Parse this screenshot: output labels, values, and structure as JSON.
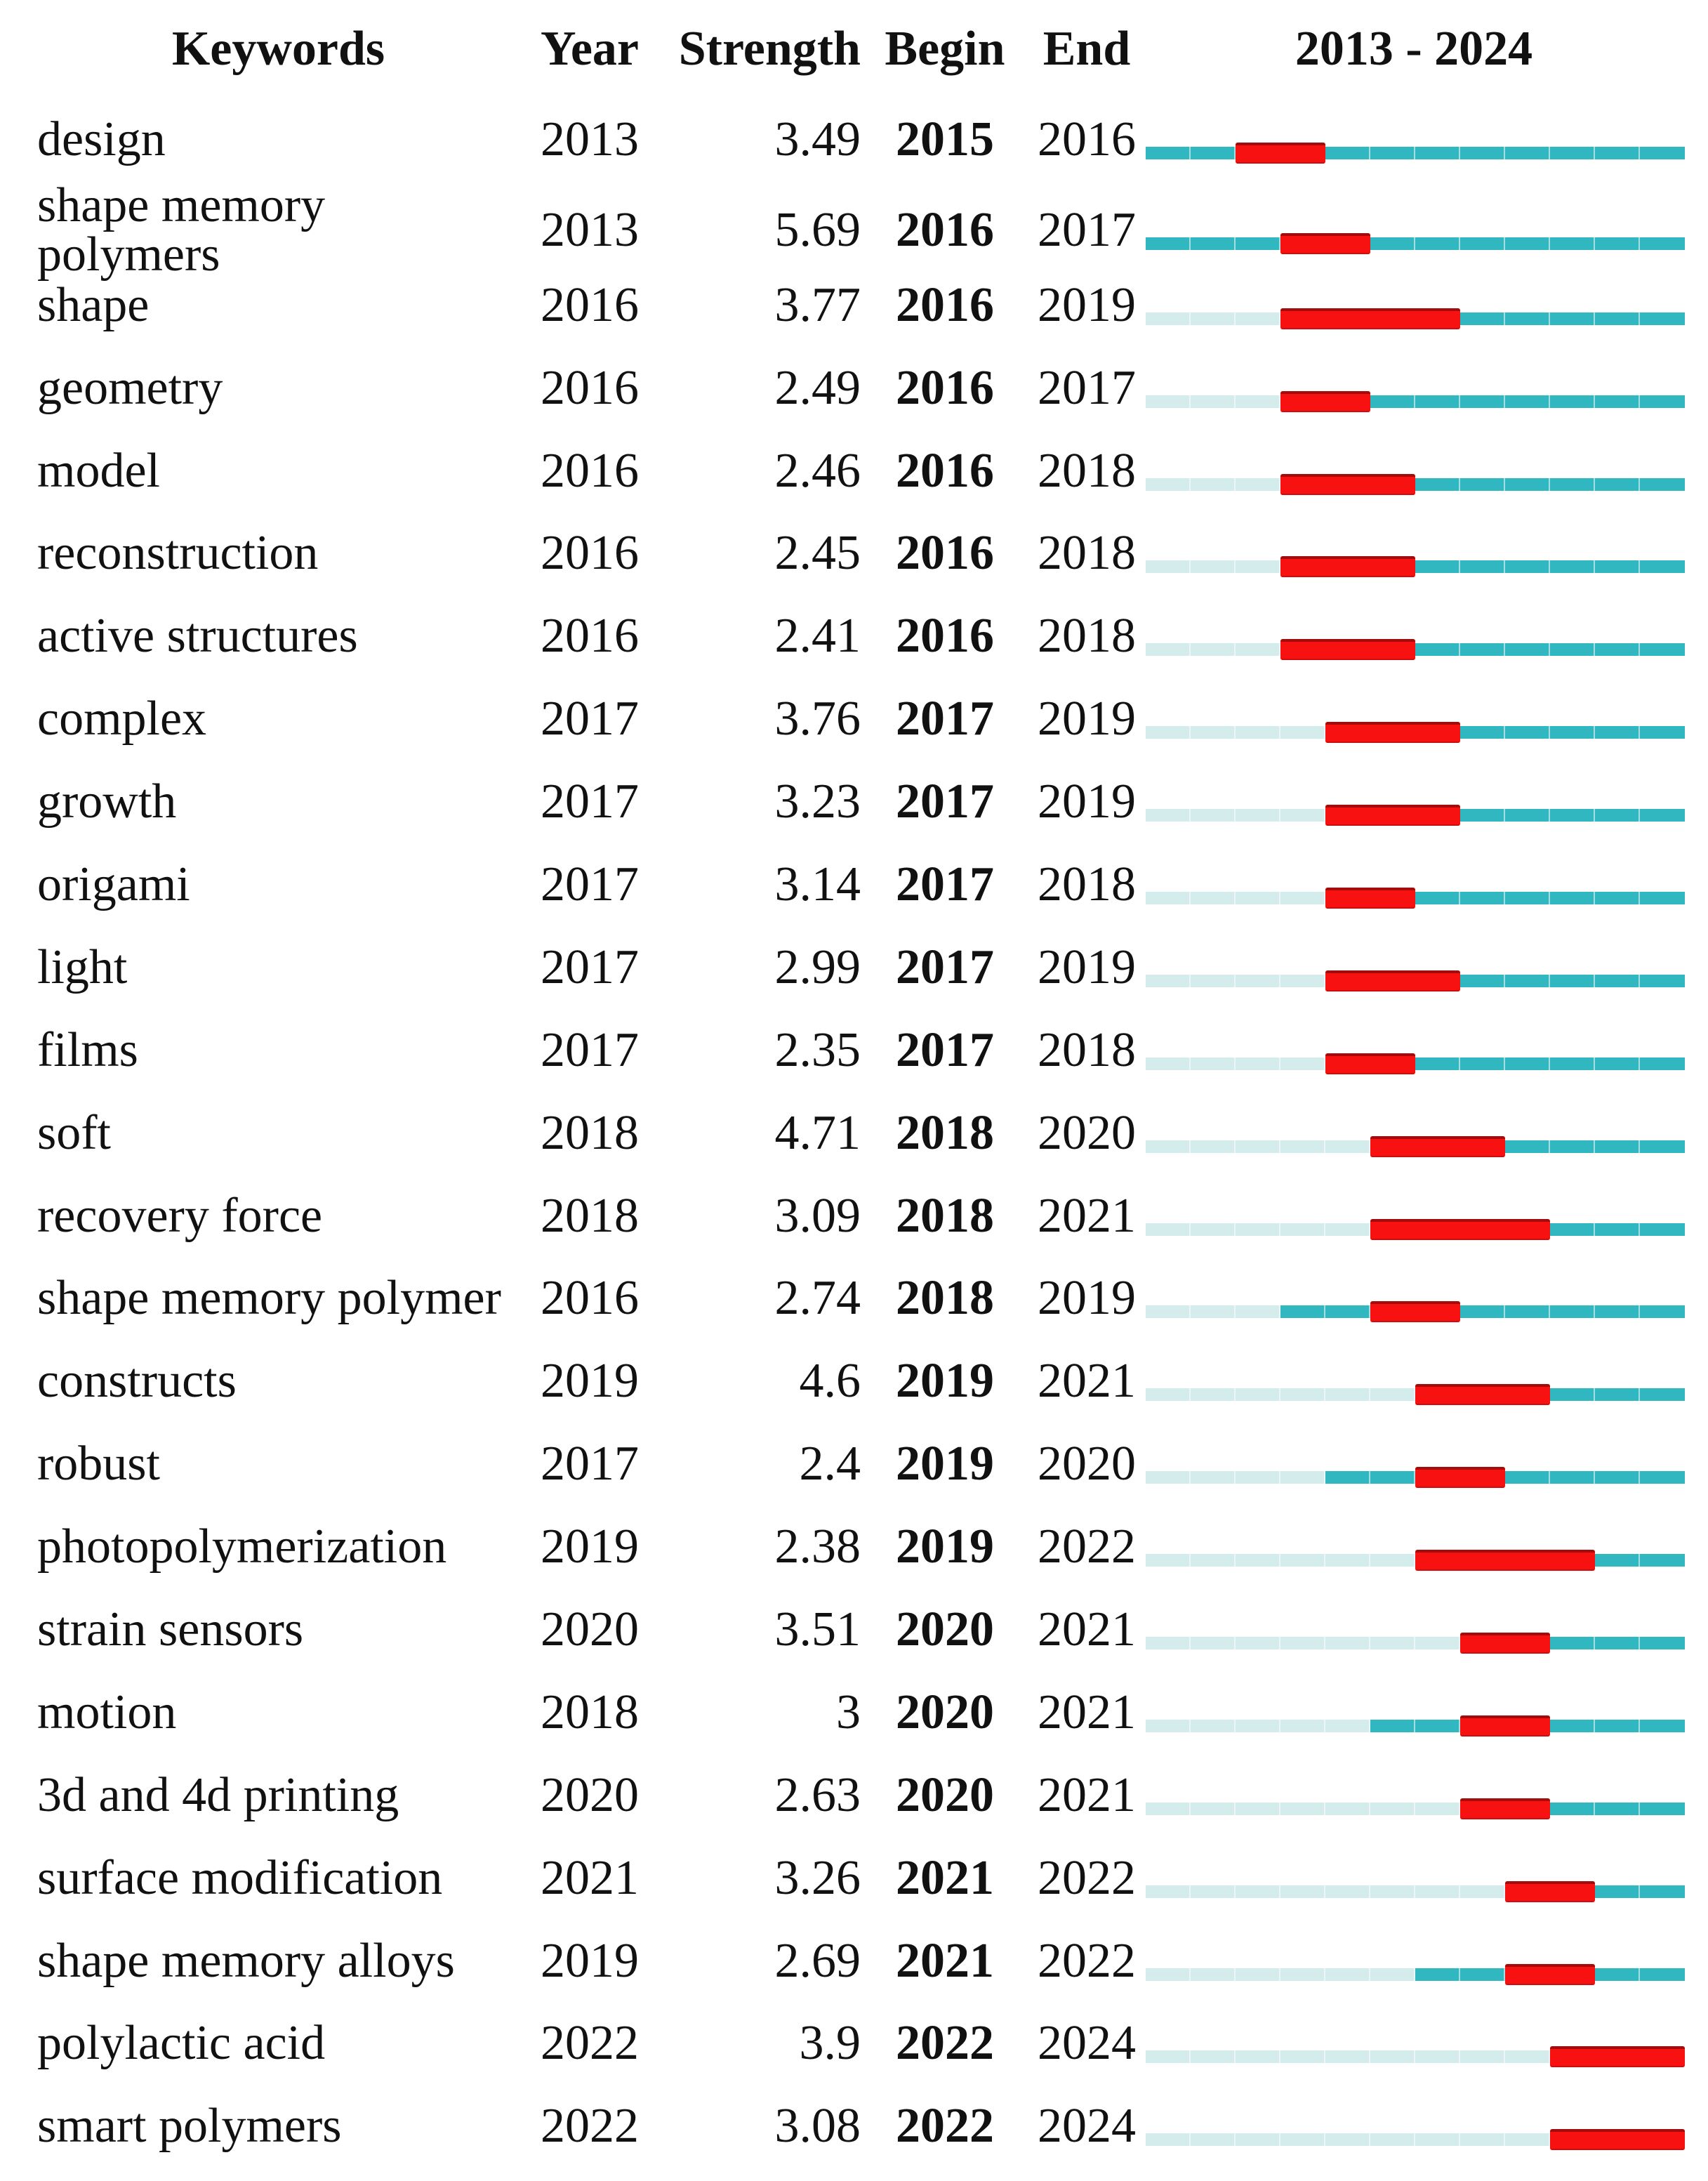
{
  "header": {
    "keywords": "Keywords",
    "year": "Year",
    "strength": "Strength",
    "begin": "Begin",
    "end": "End",
    "timeline": "2013 - 2024"
  },
  "colors": {
    "burst_red": "#f71111",
    "active_teal": "#31b7bf",
    "inactive_teal": "#d5eced",
    "text": "#111111"
  },
  "chart_data": {
    "type": "table",
    "title": "",
    "columns": [
      "Keywords",
      "Year",
      "Strength",
      "Begin",
      "End",
      "2013 - 2024"
    ],
    "timeline": {
      "start": 2013,
      "end": 2024,
      "bar_encoding": {
        "red": "burst interval from Begin to End inclusive",
        "dark_teal": "years on or after first-appearance Year (non-burst)",
        "light_teal": "years before first-appearance Year"
      }
    },
    "rows": [
      {
        "keyword": "design",
        "year": 2013,
        "strength": "3.49",
        "begin": 2015,
        "end": 2016
      },
      {
        "keyword": "shape memory polymers",
        "year": 2013,
        "strength": "5.69",
        "begin": 2016,
        "end": 2017
      },
      {
        "keyword": "shape",
        "year": 2016,
        "strength": "3.77",
        "begin": 2016,
        "end": 2019
      },
      {
        "keyword": "geometry",
        "year": 2016,
        "strength": "2.49",
        "begin": 2016,
        "end": 2017
      },
      {
        "keyword": "model",
        "year": 2016,
        "strength": "2.46",
        "begin": 2016,
        "end": 2018
      },
      {
        "keyword": "reconstruction",
        "year": 2016,
        "strength": "2.45",
        "begin": 2016,
        "end": 2018
      },
      {
        "keyword": "active structures",
        "year": 2016,
        "strength": "2.41",
        "begin": 2016,
        "end": 2018
      },
      {
        "keyword": "complex",
        "year": 2017,
        "strength": "3.76",
        "begin": 2017,
        "end": 2019
      },
      {
        "keyword": "growth",
        "year": 2017,
        "strength": "3.23",
        "begin": 2017,
        "end": 2019
      },
      {
        "keyword": "origami",
        "year": 2017,
        "strength": "3.14",
        "begin": 2017,
        "end": 2018
      },
      {
        "keyword": "light",
        "year": 2017,
        "strength": "2.99",
        "begin": 2017,
        "end": 2019
      },
      {
        "keyword": "films",
        "year": 2017,
        "strength": "2.35",
        "begin": 2017,
        "end": 2018
      },
      {
        "keyword": "soft",
        "year": 2018,
        "strength": "4.71",
        "begin": 2018,
        "end": 2020
      },
      {
        "keyword": "recovery force",
        "year": 2018,
        "strength": "3.09",
        "begin": 2018,
        "end": 2021
      },
      {
        "keyword": "shape memory polymer",
        "year": 2016,
        "strength": "2.74",
        "begin": 2018,
        "end": 2019
      },
      {
        "keyword": "constructs",
        "year": 2019,
        "strength": "4.6",
        "begin": 2019,
        "end": 2021
      },
      {
        "keyword": "robust",
        "year": 2017,
        "strength": "2.4",
        "begin": 2019,
        "end": 2020
      },
      {
        "keyword": "photopolymerization",
        "year": 2019,
        "strength": "2.38",
        "begin": 2019,
        "end": 2022
      },
      {
        "keyword": "strain sensors",
        "year": 2020,
        "strength": "3.51",
        "begin": 2020,
        "end": 2021
      },
      {
        "keyword": "motion",
        "year": 2018,
        "strength": "3",
        "begin": 2020,
        "end": 2021
      },
      {
        "keyword": "3d and 4d printing",
        "year": 2020,
        "strength": "2.63",
        "begin": 2020,
        "end": 2021
      },
      {
        "keyword": "surface modification",
        "year": 2021,
        "strength": "3.26",
        "begin": 2021,
        "end": 2022
      },
      {
        "keyword": "shape memory alloys",
        "year": 2019,
        "strength": "2.69",
        "begin": 2021,
        "end": 2022
      },
      {
        "keyword": "polylactic acid",
        "year": 2022,
        "strength": "3.9",
        "begin": 2022,
        "end": 2024
      },
      {
        "keyword": "smart polymers",
        "year": 2022,
        "strength": "3.08",
        "begin": 2022,
        "end": 2024
      }
    ]
  }
}
